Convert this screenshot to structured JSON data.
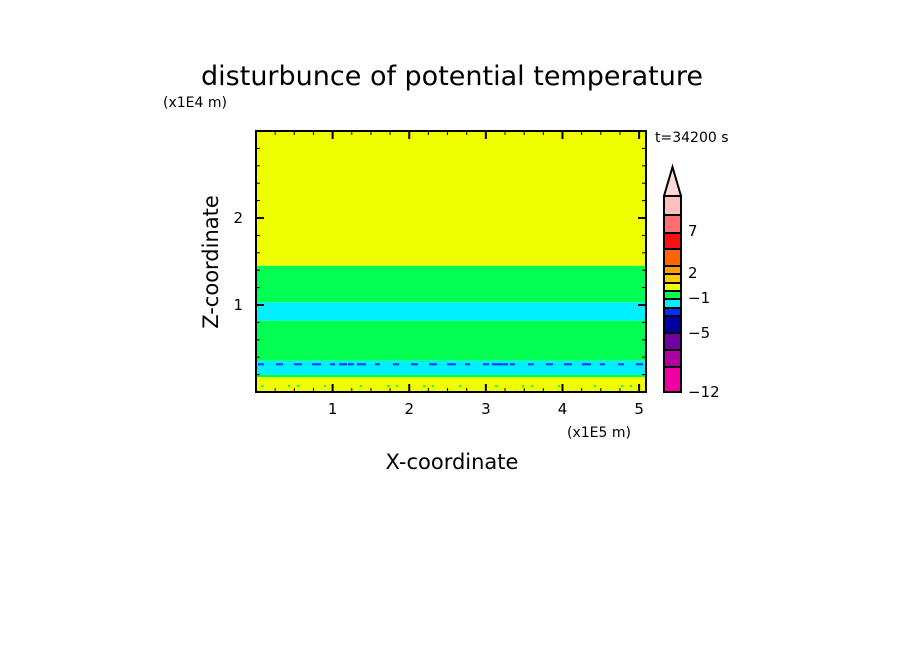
{
  "chart_data": {
    "type": "heatmap",
    "title": "disturbunce of potential temperature",
    "xlabel": "X-coordinate",
    "ylabel": "Z-coordinate",
    "x_unit": "(x1E5 m)",
    "y_unit": "(x1E4 m)",
    "time_label": "t=34200 s",
    "xlim": [
      0,
      5.09
    ],
    "ylim": [
      0,
      3.0
    ],
    "x_ticks": [
      1,
      2,
      3,
      4,
      5
    ],
    "y_ticks": [
      1,
      2
    ],
    "grid": false,
    "bands": [
      {
        "z": [
          1.45,
          3.0
        ],
        "color": "#f0ff00"
      },
      {
        "z": [
          1.03,
          1.45
        ],
        "color": "#00ff50"
      },
      {
        "z": [
          0.82,
          1.03
        ],
        "color": "#00f0ff"
      },
      {
        "z": [
          0.36,
          0.82
        ],
        "color": "#00ff50"
      },
      {
        "z": [
          0.2,
          0.36
        ],
        "color": "#00f0ff"
      },
      {
        "z": [
          0.17,
          0.2
        ],
        "color": "#00ff50"
      },
      {
        "z": [
          0.0,
          0.17
        ],
        "color": "#f0ff00"
      }
    ],
    "colorbar": {
      "labels": [
        "7",
        "2",
        "−1",
        "−5",
        "−12"
      ],
      "colors_top_to_bottom": [
        "#ffbfbf",
        "#ff7070",
        "#ff1010",
        "#ff6600",
        "#ffa000",
        "#ffc800",
        "#f0ff00",
        "#00ff50",
        "#00f0ff",
        "#0030ff",
        "#0000a0",
        "#7000a0",
        "#b000a0",
        "#f000a0"
      ],
      "extend_top_color": "#ffd8d8"
    }
  }
}
